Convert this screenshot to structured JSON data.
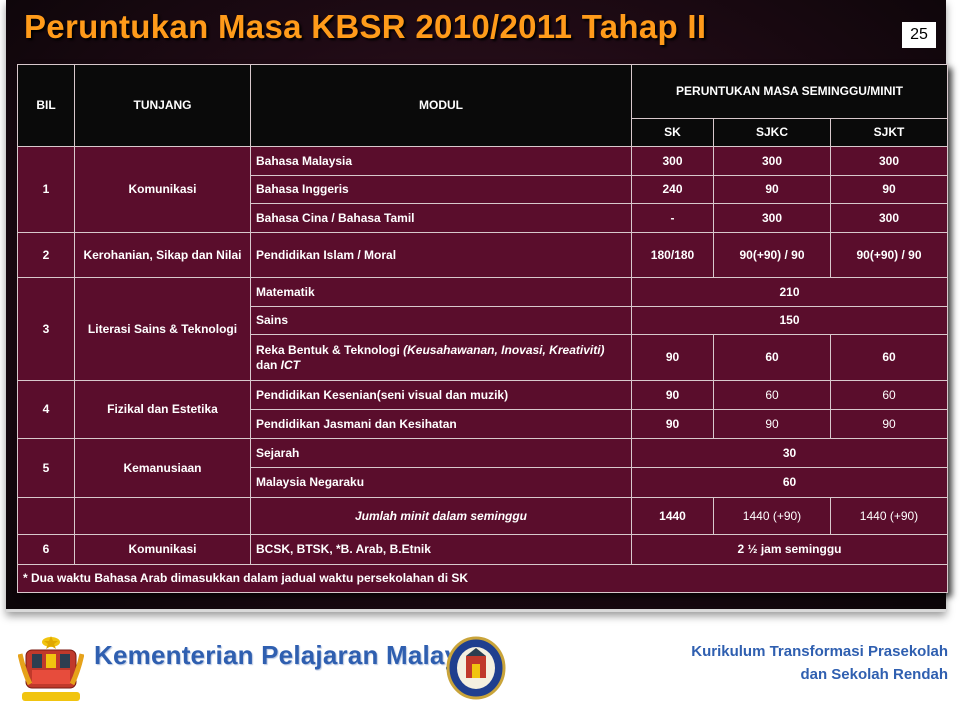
{
  "slide": {
    "title": "Peruntukan Masa KBSR 2010/2011  Tahap II",
    "page_number": "25"
  },
  "table": {
    "headers": {
      "bil": "BIL",
      "tunjang": "TUNJANG",
      "modul": "MODUL",
      "peruntukan": "PERUNTUKAN MASA SEMINGGU/MINIT",
      "sk": "SK",
      "sjkc": "SJKC",
      "sjkt": "SJKT"
    },
    "rows": {
      "r1": {
        "bil": "1",
        "tunjang": "Komunikasi",
        "m1": {
          "modul": "Bahasa Malaysia",
          "sk": "300",
          "sjkc": "300",
          "sjkt": "300"
        },
        "m2": {
          "modul": "Bahasa Inggeris",
          "sk": "240",
          "sjkc": "90",
          "sjkt": "90"
        },
        "m3": {
          "modul": "Bahasa Cina / Bahasa Tamil",
          "sk": "-",
          "sjkc": "300",
          "sjkt": "300"
        }
      },
      "r2": {
        "bil": "2",
        "tunjang": "Kerohanian, Sikap dan Nilai",
        "m1": {
          "modul": "Pendidikan Islam /  Moral",
          "sk": "180/180",
          "sjkc": "90(+90) / 90",
          "sjkt": "90(+90) / 90"
        }
      },
      "r3": {
        "bil": "3",
        "tunjang": "Literasi Sains & Teknologi",
        "m1": {
          "modul": "Matematik",
          "all": "210"
        },
        "m2": {
          "modul": "Sains",
          "all": "150"
        },
        "m3": {
          "modul_a": "Reka Bentuk & Teknologi ",
          "modul_b": "(Keusahawanan, Inovasi, Kreativiti)",
          "modul_c": " dan ",
          "modul_d": "ICT",
          "sk": "90",
          "sjkc": "60",
          "sjkt": "60"
        }
      },
      "r4": {
        "bil": "4",
        "tunjang": "Fizikal dan Estetika",
        "m1": {
          "modul": "Pendidikan Kesenian(seni visual dan muzik)",
          "sk": "90",
          "sjkc": "60",
          "sjkt": "60"
        },
        "m2": {
          "modul": "Pendidikan Jasmani dan Kesihatan",
          "sk": "90",
          "sjkc": "90",
          "sjkt": "90"
        }
      },
      "r5": {
        "bil": "5",
        "tunjang": "Kemanusiaan",
        "m1": {
          "modul": "Sejarah",
          "all": "30"
        },
        "m2": {
          "modul": "Malaysia Negaraku",
          "all": "60"
        }
      },
      "total": {
        "label": "Jumlah minit dalam seminggu",
        "sk": "1440",
        "sjkc": "1440 (+90)",
        "sjkt": "1440 (+90)"
      },
      "r6": {
        "bil": "6",
        "tunjang": "Komunikasi",
        "modul": "BCSK, BTSK, *B. Arab, B.Etnik",
        "all": "2 ½ jam seminggu"
      },
      "note": "* Dua waktu Bahasa Arab dimasukkan dalam jadual waktu persekolahan di SK"
    }
  },
  "footer": {
    "ministry": "Kementerian Pelajaran Malaysia",
    "kurikulum_line1": "Kurikulum  Transformasi Prasekolah",
    "kurikulum_line2": "dan Sekolah Rendah"
  },
  "icons": {
    "left_logo": "malaysia-coat-of-arms",
    "right_logo": "ministry-of-education-emblem"
  },
  "colors": {
    "title": "#ff9b1a",
    "table_cell": "#5a0d2c",
    "header_cell": "#0a0a0a",
    "footer_text": "#2f5fb0"
  }
}
